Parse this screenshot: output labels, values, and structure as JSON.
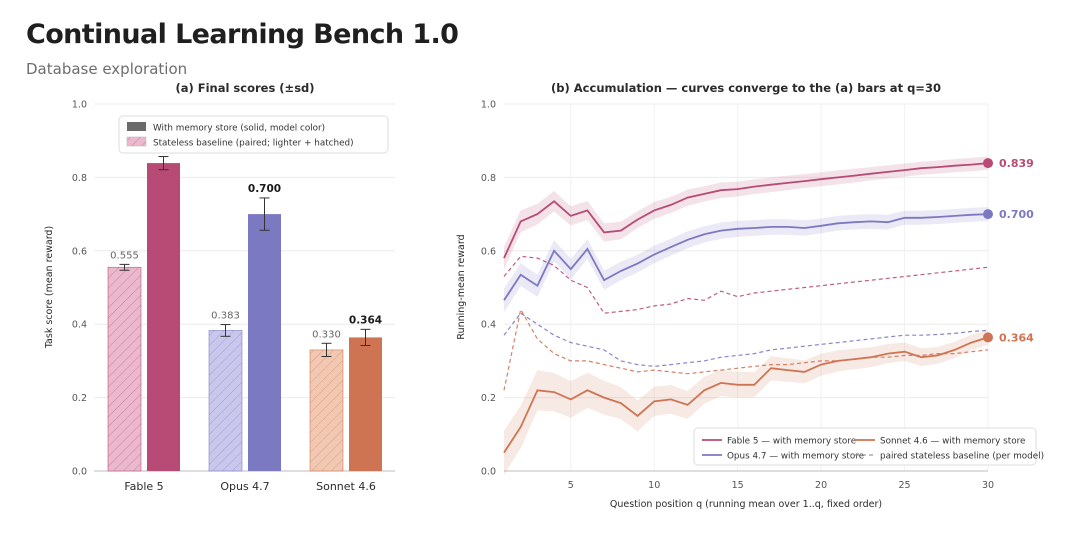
{
  "header": {
    "title": "Continual Learning Bench 1.0",
    "subtitle": "Database exploration"
  },
  "colors": {
    "fable": "#b84a76",
    "opus": "#7b79c2",
    "sonnet": "#cf7452",
    "fable_light": "#eab9cd",
    "opus_light": "#c9c8ec",
    "sonnet_light": "#f1c9b3"
  },
  "chart_data": [
    {
      "type": "bar",
      "title": "(a) Final scores (±sd)",
      "xlabel": "",
      "ylabel": "Task score (mean reward)",
      "ylim": [
        0,
        1.0
      ],
      "yticks": [
        "0.0",
        "0.2",
        "0.4",
        "0.6",
        "0.8",
        "1.0"
      ],
      "categories": [
        "Fable 5",
        "Opus 4.7",
        "Sonnet 4.6"
      ],
      "grid": true,
      "legend_position": "top",
      "legend": [
        "With memory store (solid, model color)",
        "Stateless baseline (paired; lighter + hatched)"
      ],
      "series": [
        {
          "name": "Stateless baseline (paired; lighter + hatched)",
          "values": [
            0.555,
            0.383,
            0.33
          ],
          "sd": [
            0.008,
            0.016,
            0.018
          ],
          "labels": [
            "0.555",
            "0.383",
            "0.330"
          ]
        },
        {
          "name": "With memory store (solid, model color)",
          "values": [
            0.839,
            0.7,
            0.364
          ],
          "sd": [
            0.018,
            0.044,
            0.022
          ],
          "labels": [
            "",
            "0.700",
            "0.364"
          ]
        }
      ]
    },
    {
      "type": "line",
      "title": "(b) Accumulation — curves converge to the (a) bars at q=30",
      "xlabel": "Question position q (running mean over 1..q, fixed order)",
      "ylabel": "Running-mean reward",
      "xlim": [
        1,
        30
      ],
      "ylim": [
        0,
        1.0
      ],
      "xticks": [
        "5",
        "10",
        "15",
        "20",
        "25",
        "30"
      ],
      "yticks": [
        "0.0",
        "0.2",
        "0.4",
        "0.6",
        "0.8",
        "1.0"
      ],
      "grid": true,
      "legend_position": "bottom-right",
      "legend": [
        "Fable 5 — with memory store",
        "Opus 4.7 — with memory store",
        "Sonnet 4.6 — with memory store",
        "paired stateless baseline (per model)"
      ],
      "x": [
        1,
        2,
        3,
        4,
        5,
        6,
        7,
        8,
        9,
        10,
        11,
        12,
        13,
        14,
        15,
        16,
        17,
        18,
        19,
        20,
        21,
        22,
        23,
        24,
        25,
        26,
        27,
        28,
        29,
        30
      ],
      "series": [
        {
          "name": "Fable 5 — with memory store",
          "style": "solid",
          "end_label": "0.839",
          "values": [
            0.58,
            0.68,
            0.7,
            0.735,
            0.695,
            0.71,
            0.65,
            0.655,
            0.685,
            0.71,
            0.725,
            0.745,
            0.755,
            0.765,
            0.768,
            0.775,
            0.78,
            0.785,
            0.79,
            0.795,
            0.8,
            0.805,
            0.81,
            0.815,
            0.82,
            0.825,
            0.828,
            0.832,
            0.835,
            0.839
          ],
          "band": [
            0.03,
            0.03,
            0.028,
            0.028,
            0.026,
            0.026,
            0.025,
            0.024,
            0.023,
            0.023,
            0.022,
            0.022,
            0.021,
            0.021,
            0.02,
            0.02,
            0.02,
            0.02,
            0.019,
            0.019,
            0.019,
            0.019,
            0.018,
            0.018,
            0.018,
            0.018,
            0.018,
            0.018,
            0.018,
            0.018
          ]
        },
        {
          "name": "Opus 4.7 — with memory store",
          "style": "solid",
          "end_label": "0.700",
          "values": [
            0.465,
            0.535,
            0.505,
            0.6,
            0.55,
            0.605,
            0.52,
            0.545,
            0.565,
            0.59,
            0.61,
            0.63,
            0.645,
            0.655,
            0.66,
            0.662,
            0.665,
            0.665,
            0.662,
            0.668,
            0.675,
            0.678,
            0.68,
            0.678,
            0.69,
            0.69,
            0.692,
            0.695,
            0.698,
            0.7
          ],
          "band": [
            0.032,
            0.031,
            0.03,
            0.029,
            0.028,
            0.027,
            0.026,
            0.025,
            0.024,
            0.024,
            0.023,
            0.023,
            0.022,
            0.022,
            0.022,
            0.021,
            0.021,
            0.021,
            0.021,
            0.02,
            0.02,
            0.02,
            0.02,
            0.02,
            0.019,
            0.019,
            0.019,
            0.019,
            0.019,
            0.019
          ]
        },
        {
          "name": "Sonnet 4.6 — with memory store",
          "style": "solid",
          "end_label": "0.364",
          "values": [
            0.05,
            0.12,
            0.22,
            0.215,
            0.195,
            0.22,
            0.2,
            0.185,
            0.15,
            0.19,
            0.195,
            0.18,
            0.22,
            0.24,
            0.235,
            0.235,
            0.28,
            0.275,
            0.27,
            0.29,
            0.3,
            0.305,
            0.31,
            0.32,
            0.325,
            0.31,
            0.315,
            0.33,
            0.35,
            0.364
          ],
          "band": [
            0.06,
            0.058,
            0.055,
            0.052,
            0.05,
            0.048,
            0.046,
            0.044,
            0.042,
            0.04,
            0.039,
            0.038,
            0.037,
            0.036,
            0.035,
            0.034,
            0.033,
            0.032,
            0.031,
            0.03,
            0.029,
            0.028,
            0.027,
            0.026,
            0.025,
            0.024,
            0.023,
            0.022,
            0.021,
            0.02
          ]
        },
        {
          "name": "paired stateless baseline (per model)",
          "model": "fable",
          "style": "dashed",
          "values": [
            0.53,
            0.585,
            0.58,
            0.56,
            0.52,
            0.5,
            0.43,
            0.435,
            0.44,
            0.45,
            0.455,
            0.47,
            0.465,
            0.49,
            0.475,
            0.485,
            0.49,
            0.495,
            0.5,
            0.505,
            0.51,
            0.515,
            0.52,
            0.525,
            0.53,
            0.535,
            0.54,
            0.545,
            0.55,
            0.555
          ]
        },
        {
          "name": "paired stateless baseline (per model)",
          "model": "opus",
          "style": "dashed",
          "values": [
            0.37,
            0.43,
            0.4,
            0.37,
            0.35,
            0.34,
            0.33,
            0.3,
            0.29,
            0.285,
            0.29,
            0.295,
            0.3,
            0.31,
            0.315,
            0.32,
            0.33,
            0.335,
            0.34,
            0.345,
            0.35,
            0.355,
            0.36,
            0.365,
            0.37,
            0.37,
            0.372,
            0.375,
            0.38,
            0.383
          ]
        },
        {
          "name": "paired stateless baseline (per model)",
          "model": "sonnet",
          "style": "dashed",
          "values": [
            0.22,
            0.44,
            0.36,
            0.32,
            0.3,
            0.3,
            0.29,
            0.28,
            0.27,
            0.275,
            0.27,
            0.265,
            0.27,
            0.275,
            0.28,
            0.285,
            0.29,
            0.29,
            0.295,
            0.3,
            0.3,
            0.305,
            0.31,
            0.31,
            0.315,
            0.315,
            0.32,
            0.32,
            0.325,
            0.33
          ]
        }
      ]
    }
  ]
}
